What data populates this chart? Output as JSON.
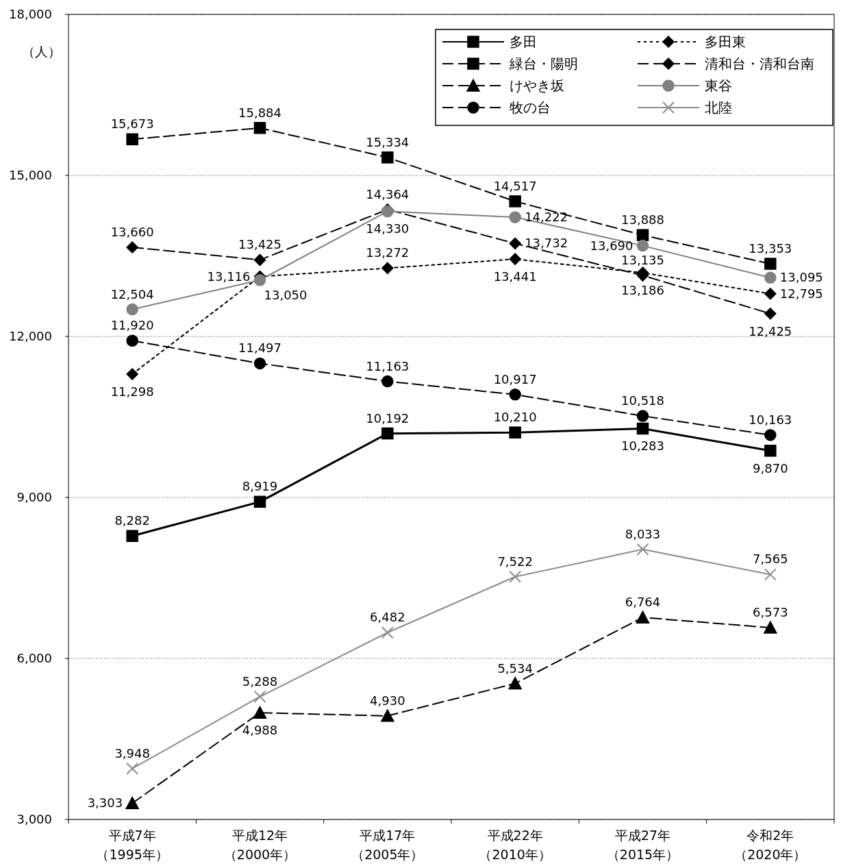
{
  "chart_data": {
    "type": "line",
    "ylabel": "（人）",
    "categories": [
      "平成7年（1995年）",
      "平成12年（2000年）",
      "平成17年（2005年）",
      "平成22年（2010年）",
      "平成27年（2015年）",
      "令和2年（2020年）"
    ],
    "ylim": [
      3000,
      18000
    ],
    "yticks": [
      {
        "value": 3000,
        "label": "3,000"
      },
      {
        "value": 6000,
        "label": "6,000"
      },
      {
        "value": 9000,
        "label": "9,000"
      },
      {
        "value": 12000,
        "label": "12,000"
      },
      {
        "value": 15000,
        "label": "15,000"
      },
      {
        "value": 18000,
        "label": "18,000"
      }
    ],
    "grid": "y",
    "legend": "top right",
    "series": [
      {
        "name": "多田",
        "color": "#000000",
        "marker": "square",
        "line_style": "solid",
        "values": [
          8282,
          8919,
          10192,
          10210,
          10283,
          9870
        ],
        "value_labels": [
          "8,282",
          "8,919",
          "10,192",
          "10,210",
          "10,283",
          "9,870"
        ]
      },
      {
        "name": "多田東",
        "color": "#000000",
        "marker": "diamond",
        "line_style": "dotted",
        "values": [
          11298,
          13116,
          13272,
          13441,
          13186,
          12795
        ],
        "value_labels": [
          "11,298",
          "13,116",
          "13,272",
          "13,441",
          "13,186",
          "12,795"
        ]
      },
      {
        "name": "緑台・陽明",
        "color": "#000000",
        "marker": "square",
        "line_style": "dashed",
        "values": [
          15673,
          15884,
          15334,
          14517,
          13888,
          13353
        ],
        "value_labels": [
          "15,673",
          "15,884",
          "15,334",
          "14,517",
          "13,888",
          "13,353"
        ]
      },
      {
        "name": "清和台・清和台南",
        "color": "#000000",
        "marker": "diamond",
        "line_style": "dashed",
        "values": [
          13660,
          13425,
          14364,
          13732,
          13135,
          12425
        ],
        "value_labels": [
          "13,660",
          "13,425",
          "14,364",
          "13,732",
          "13,135",
          "12,425"
        ]
      },
      {
        "name": "けやき坂",
        "color": "#000000",
        "marker": "triangle",
        "line_style": "dashed",
        "values": [
          3303,
          4988,
          4930,
          5534,
          6764,
          6573
        ],
        "value_labels": [
          "3,303",
          "4,988",
          "4,930",
          "5,534",
          "6,764",
          "6,573"
        ]
      },
      {
        "name": "東谷",
        "color": "#808080",
        "marker": "circle",
        "line_style": "solid",
        "values": [
          12504,
          13050,
          14330,
          14222,
          13690,
          13095
        ],
        "value_labels": [
          "12,504",
          "13,050",
          "14,330",
          "14,222",
          "13,690",
          "13,095"
        ]
      },
      {
        "name": "牧の台",
        "color": "#000000",
        "marker": "circle",
        "line_style": "dashed",
        "values": [
          11920,
          11497,
          11163,
          10917,
          10518,
          10163
        ],
        "value_labels": [
          "11,920",
          "11,497",
          "11,163",
          "10,917",
          "10,518",
          "10,163"
        ]
      },
      {
        "name": "北陸",
        "color": "#8c8c8c",
        "marker": "cross",
        "line_style": "solid",
        "values": [
          3948,
          5288,
          6482,
          7522,
          8033,
          7565
        ],
        "value_labels": [
          "3,948",
          "5,288",
          "6,482",
          "7,522",
          "8,033",
          "7,565"
        ]
      }
    ]
  }
}
